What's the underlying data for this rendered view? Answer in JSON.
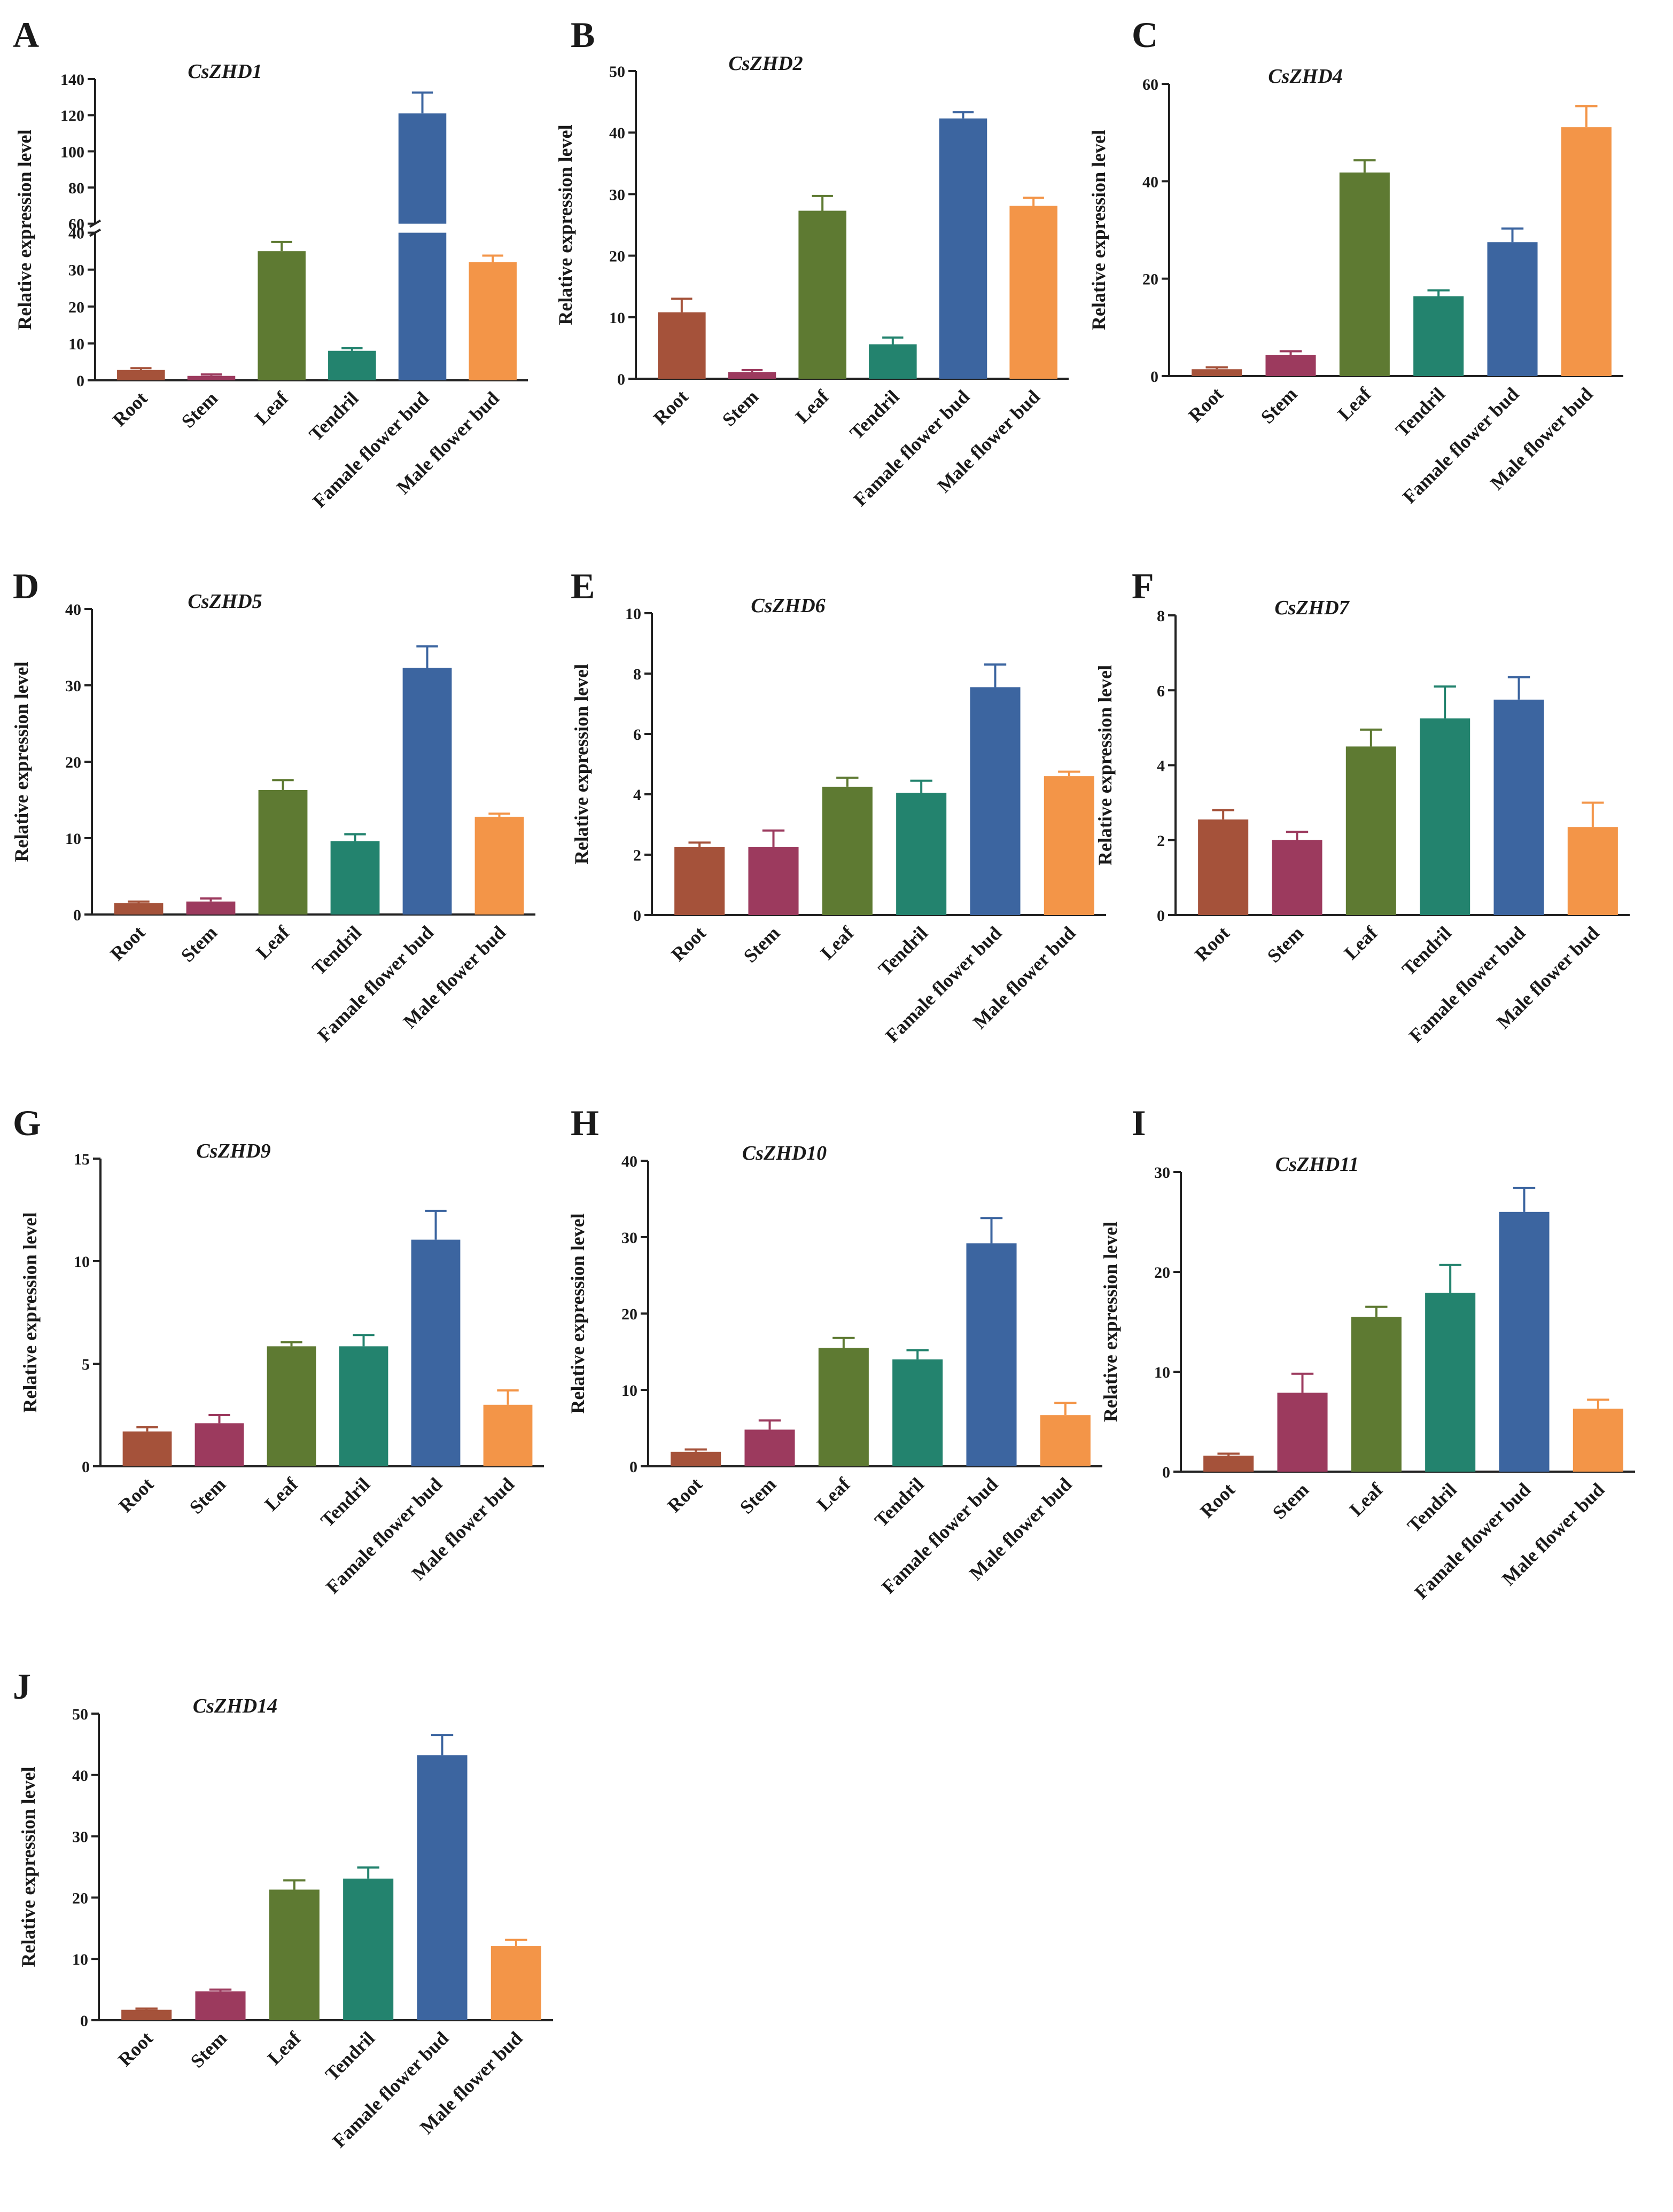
{
  "figure": {
    "categories": [
      "Root",
      "Stem",
      "Leaf",
      "Tendril",
      "Famale flower bud",
      "Male flower bud"
    ],
    "colors": {
      "Root": "#A5523A",
      "Stem": "#9C3A5E",
      "Leaf": "#5E7A32",
      "Tendril": "#23836E",
      "Famale flower bud": "#3C65A0",
      "Male flower bud": "#F39548",
      "axis": "#222222",
      "text": "#1a1a1a"
    }
  },
  "chart_data": [
    {
      "type": "bar",
      "panel": "A",
      "title": "CsZHD1",
      "ylabel": "Relative expression level",
      "xlabel": "",
      "categories": [
        "Root",
        "Stem",
        "Leaf",
        "Tendril",
        "Famale flower bud",
        "Male flower bud"
      ],
      "values": [
        2.8,
        1.2,
        35.0,
        8.0,
        121.0,
        32.0
      ],
      "errors": [
        0.5,
        0.4,
        2.5,
        0.7,
        11.5,
        1.8
      ],
      "ylim": [
        0,
        140
      ],
      "broken_axis": {
        "lower": [
          0,
          40
        ],
        "upper": [
          60,
          140
        ],
        "lower_ticks": [
          0,
          10,
          20,
          30,
          40
        ],
        "upper_ticks": [
          60,
          80,
          100,
          120,
          140
        ]
      }
    },
    {
      "type": "bar",
      "panel": "B",
      "title": "CsZHD2",
      "ylabel": "Relative expression level",
      "xlabel": "",
      "categories": [
        "Root",
        "Stem",
        "Leaf",
        "Tendril",
        "Famale flower bud",
        "Male flower bud"
      ],
      "values": [
        10.8,
        1.1,
        27.3,
        5.6,
        42.3,
        28.1
      ],
      "errors": [
        2.2,
        0.3,
        2.4,
        1.1,
        1.0,
        1.3
      ],
      "ylim": [
        0,
        50
      ],
      "yticks": [
        0,
        10,
        20,
        30,
        40,
        50
      ]
    },
    {
      "type": "bar",
      "panel": "C",
      "title": "CsZHD4",
      "ylabel": "Relative expression level",
      "xlabel": "",
      "categories": [
        "Root",
        "Stem",
        "Leaf",
        "Tendril",
        "Famale flower bud",
        "Male flower bud"
      ],
      "values": [
        1.4,
        4.3,
        41.8,
        16.4,
        27.5,
        51.1
      ],
      "errors": [
        0.4,
        0.8,
        2.5,
        1.2,
        2.8,
        4.3
      ],
      "ylim": [
        0,
        60
      ],
      "yticks": [
        0,
        20,
        40,
        60
      ]
    },
    {
      "type": "bar",
      "panel": "D",
      "title": "CsZHD5",
      "ylabel": "Relative expression level",
      "xlabel": "",
      "categories": [
        "Root",
        "Stem",
        "Leaf",
        "Tendril",
        "Famale flower bud",
        "Male flower bud"
      ],
      "values": [
        1.5,
        1.7,
        16.3,
        9.6,
        32.3,
        12.8
      ],
      "errors": [
        0.2,
        0.4,
        1.3,
        0.9,
        2.8,
        0.4
      ],
      "ylim": [
        0,
        40
      ],
      "yticks": [
        0,
        10,
        20,
        30,
        40
      ]
    },
    {
      "type": "bar",
      "panel": "E",
      "title": "CsZHD6",
      "ylabel": "Relative expression level",
      "xlabel": "",
      "categories": [
        "Root",
        "Stem",
        "Leaf",
        "Tendril",
        "Famale flower bud",
        "Male flower bud"
      ],
      "values": [
        2.25,
        2.25,
        4.25,
        4.05,
        7.55,
        4.6
      ],
      "errors": [
        0.15,
        0.55,
        0.3,
        0.4,
        0.75,
        0.15
      ],
      "ylim": [
        0,
        10
      ],
      "yticks": [
        0,
        2,
        4,
        6,
        8,
        10
      ]
    },
    {
      "type": "bar",
      "panel": "F",
      "title": "CsZHD7",
      "ylabel": "Relative expression level",
      "xlabel": "",
      "categories": [
        "Root",
        "Stem",
        "Leaf",
        "Tendril",
        "Famale flower bud",
        "Male flower bud"
      ],
      "values": [
        2.55,
        2.0,
        4.5,
        5.25,
        5.75,
        2.35
      ],
      "errors": [
        0.25,
        0.22,
        0.45,
        0.85,
        0.6,
        0.65
      ],
      "ylim": [
        0,
        8
      ],
      "yticks": [
        0,
        2,
        4,
        6,
        8
      ]
    },
    {
      "type": "bar",
      "panel": "G",
      "title": "CsZHD9",
      "ylabel": "Relative expression level",
      "xlabel": "",
      "categories": [
        "Root",
        "Stem",
        "Leaf",
        "Tendril",
        "Famale flower bud",
        "Male flower bud"
      ],
      "values": [
        1.7,
        2.1,
        5.85,
        5.85,
        11.05,
        3.0
      ],
      "errors": [
        0.2,
        0.4,
        0.2,
        0.55,
        1.4,
        0.7
      ],
      "ylim": [
        0,
        15
      ],
      "yticks": [
        0,
        5,
        10,
        15
      ]
    },
    {
      "type": "bar",
      "panel": "H",
      "title": "CsZHD10",
      "ylabel": "Relative expression level",
      "xlabel": "",
      "categories": [
        "Root",
        "Stem",
        "Leaf",
        "Tendril",
        "Famale flower bud",
        "Male flower bud"
      ],
      "values": [
        1.9,
        4.8,
        15.5,
        14.0,
        29.2,
        6.7
      ],
      "errors": [
        0.3,
        1.2,
        1.3,
        1.2,
        3.3,
        1.6
      ],
      "ylim": [
        0,
        40
      ],
      "yticks": [
        0,
        10,
        20,
        30,
        40
      ]
    },
    {
      "type": "bar",
      "panel": "I",
      "title": "CsZHD11",
      "ylabel": "Relative expression level",
      "xlabel": "",
      "categories": [
        "Root",
        "Stem",
        "Leaf",
        "Tendril",
        "Famale flower bud",
        "Male flower bud"
      ],
      "values": [
        1.6,
        7.9,
        15.5,
        17.9,
        26.0,
        6.3
      ],
      "errors": [
        0.2,
        1.9,
        1.0,
        2.8,
        2.4,
        0.9
      ],
      "ylim": [
        0,
        30
      ],
      "yticks": [
        0,
        10,
        20,
        30
      ]
    },
    {
      "type": "bar",
      "panel": "J",
      "title": "CsZHD14",
      "ylabel": "Relative expression level",
      "xlabel": "",
      "categories": [
        "Root",
        "Stem",
        "Leaf",
        "Tendril",
        "Famale flower bud",
        "Male flower bud"
      ],
      "values": [
        1.7,
        4.7,
        21.3,
        23.1,
        43.2,
        12.1
      ],
      "errors": [
        0.2,
        0.3,
        1.5,
        1.8,
        3.3,
        1.0
      ],
      "ylim": [
        0,
        50
      ],
      "yticks": [
        0,
        10,
        20,
        30,
        40,
        50
      ]
    }
  ]
}
